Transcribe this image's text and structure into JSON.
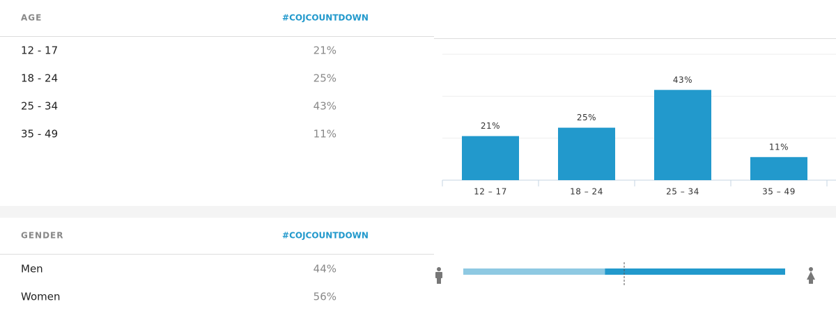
{
  "age_table": {
    "header": {
      "label": "AGE",
      "hashtag": "#COJCOUNTDOWN"
    },
    "rows": [
      [
        "12 - 17",
        "21%"
      ],
      [
        "18 - 24",
        "25%"
      ],
      [
        "25 - 34",
        "43%"
      ],
      [
        "35 - 49",
        "11%"
      ]
    ]
  },
  "gender_table": {
    "header": {
      "label": "GENDER",
      "hashtag": "#COJCOUNTDOWN"
    },
    "rows": [
      [
        "Men",
        "44%"
      ],
      [
        "Women",
        "56%"
      ]
    ]
  },
  "chart_data": [
    {
      "type": "bar",
      "categories": [
        "12 – 17",
        "18 – 24",
        "25 – 34",
        "35 – 49"
      ],
      "values": [
        21,
        25,
        43,
        11
      ],
      "value_labels": [
        "21%",
        "25%",
        "43%",
        "11%"
      ],
      "color": "#2299cc",
      "ylim": [
        0,
        60
      ],
      "yticks": [
        0,
        20,
        40,
        60
      ],
      "grid": true
    },
    {
      "type": "split",
      "xlim": [
        0,
        100
      ],
      "xticks": [
        50
      ],
      "series": [
        {
          "name": "Men",
          "color": "#8ec9e2",
          "values": [
            44
          ]
        },
        {
          "name": "Women",
          "color": "#2299cc",
          "values": [
            56
          ]
        }
      ]
    }
  ]
}
